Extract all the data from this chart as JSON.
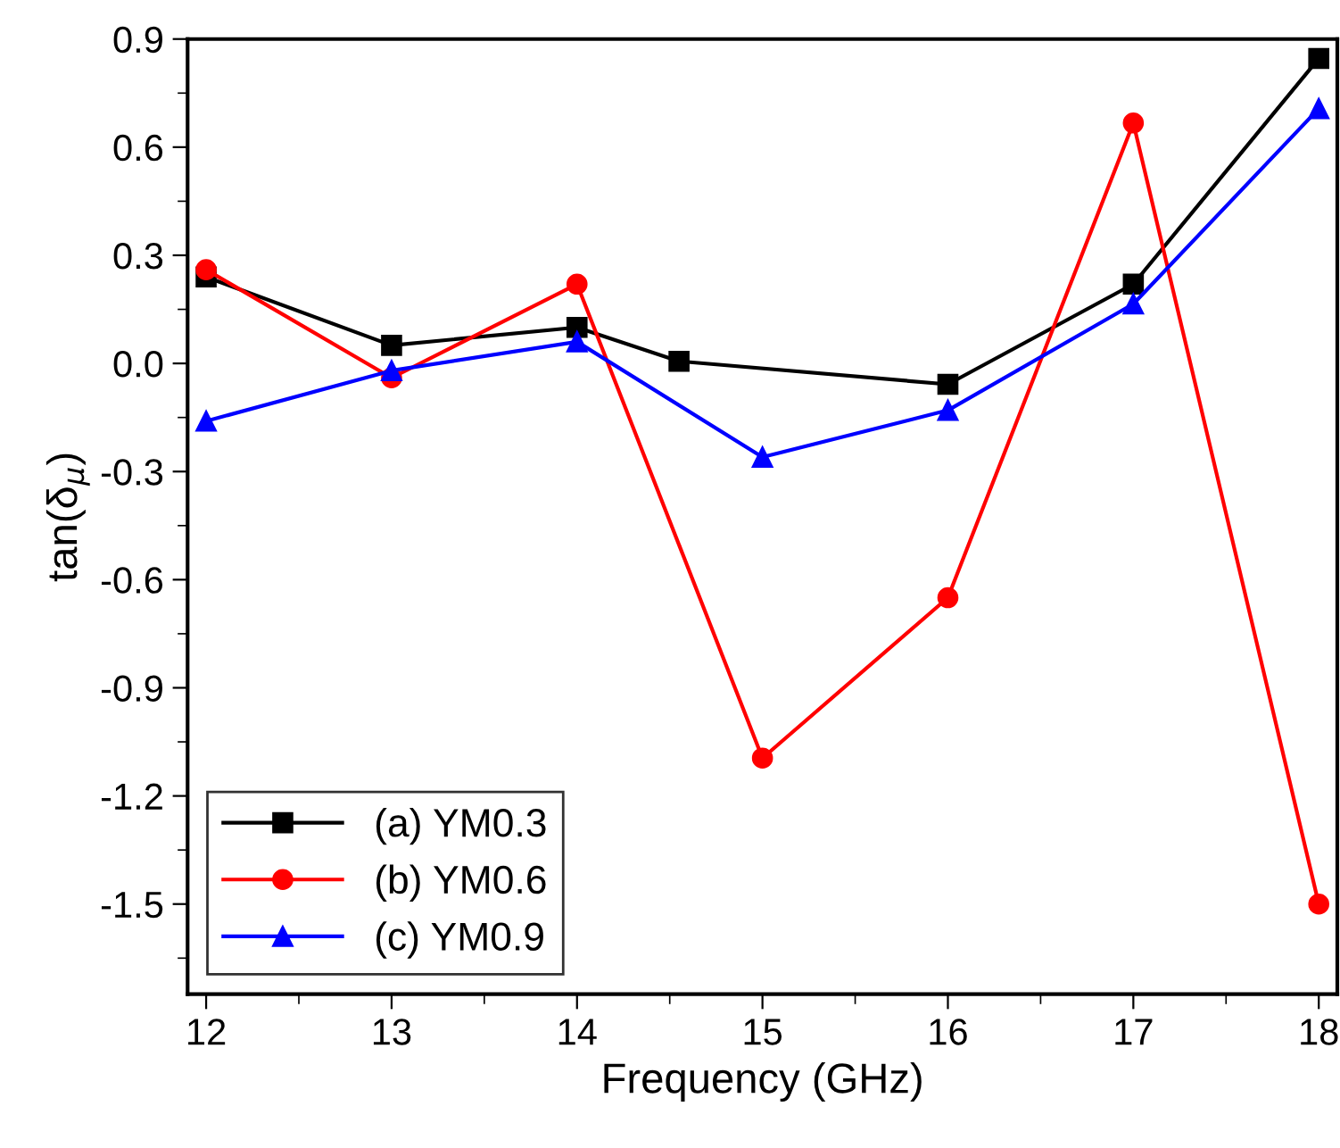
{
  "chart_data": {
    "type": "line",
    "xlabel": "Frequency (GHz)",
    "ylabel": "tan(δ$_{μ}$)",
    "xlim": [
      11.9,
      18.1
    ],
    "xticks": [
      12,
      13,
      14,
      15,
      16,
      17,
      18
    ],
    "ylim": [
      -1.75,
      0.9
    ],
    "yticks": [
      -1.5,
      -1.2,
      -0.9,
      -0.6,
      -0.3,
      {
        "value": 0,
        "label": "0.0"
      },
      0.3,
      0.6,
      0.9
    ],
    "grid": false,
    "legend": "bottom left",
    "line_style": "solid",
    "series": [
      {
        "name": "(a) YM0.3",
        "color": "#000000",
        "marker": "square",
        "x": [
          12,
          13,
          14,
          14.55,
          16,
          17,
          18
        ],
        "values": [
          0.24,
          0.05,
          0.1,
          0.006,
          -0.058,
          0.22,
          0.846
        ]
      },
      {
        "name": "(b) YM0.6",
        "color": "#ff0000",
        "marker": "circle",
        "x": [
          12,
          13,
          14,
          15,
          16,
          17,
          18
        ],
        "values": [
          0.26,
          -0.04,
          0.22,
          -1.095,
          -0.65,
          0.667,
          -1.5
        ]
      },
      {
        "name": "(c) YM0.9",
        "color": "#0000ff",
        "marker": "triangle",
        "x": [
          12,
          13,
          14,
          15,
          16,
          17,
          18
        ],
        "values": [
          -0.16,
          -0.02,
          0.06,
          -0.26,
          -0.13,
          0.165,
          0.707
        ]
      }
    ]
  }
}
